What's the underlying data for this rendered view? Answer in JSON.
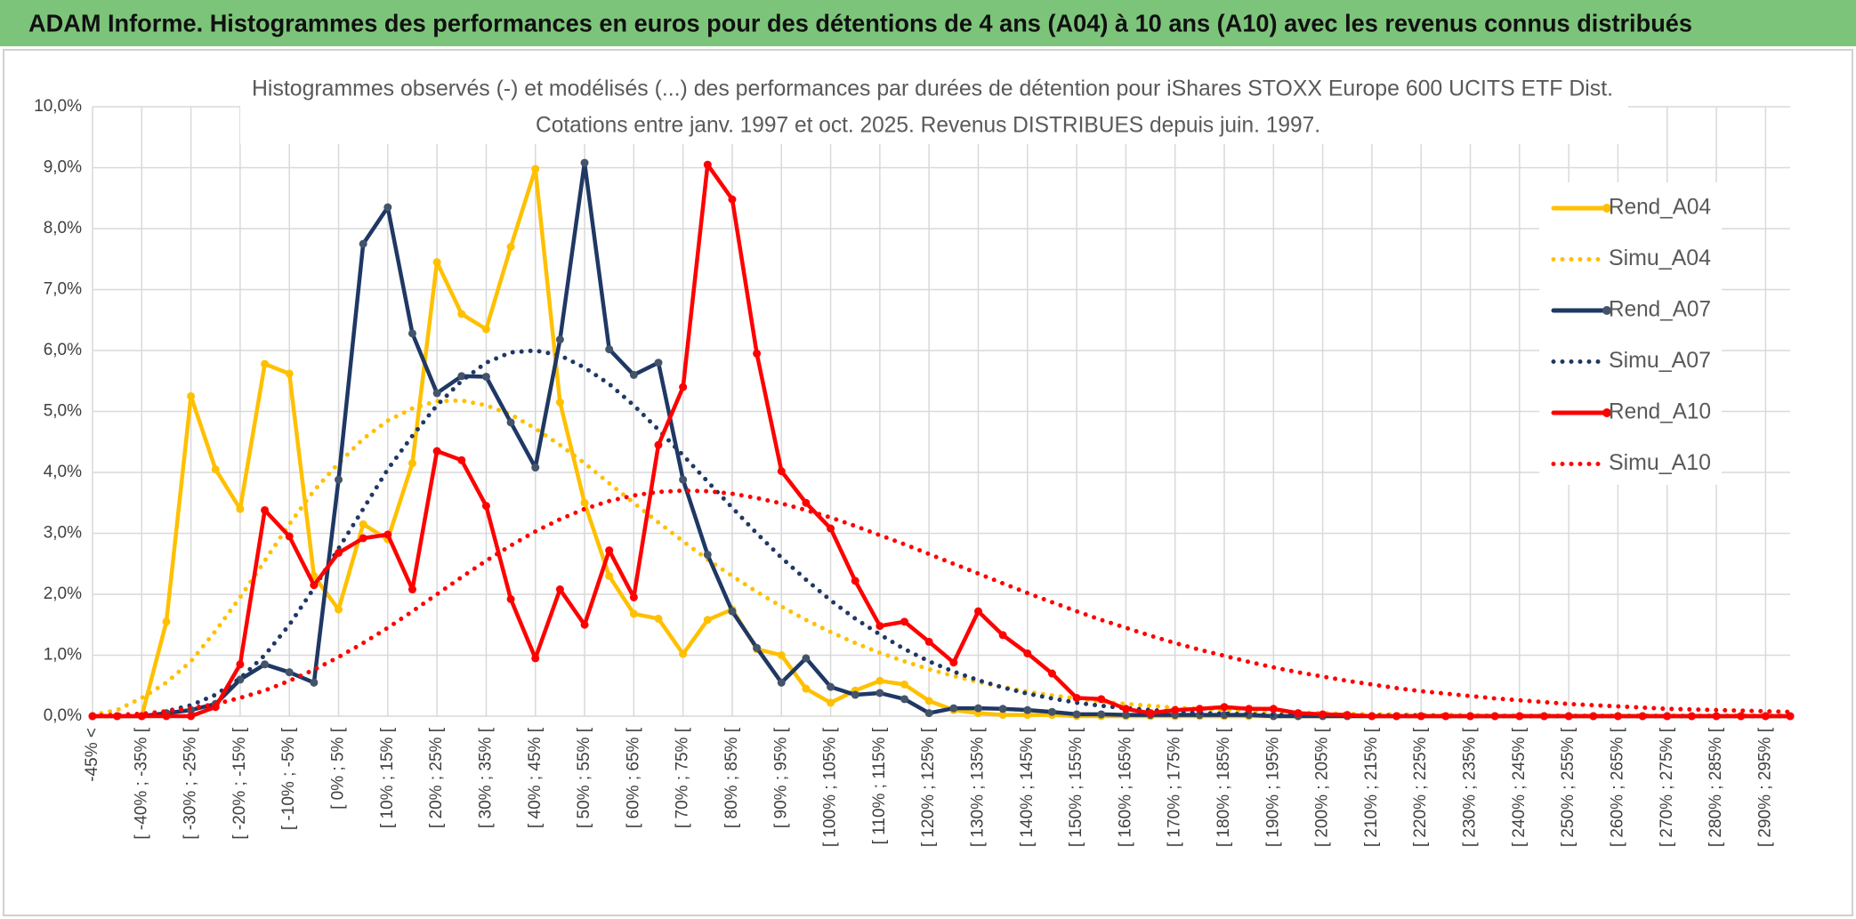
{
  "chart_data": {
    "type": "line",
    "header": "ADAM Informe. Histogrammes des performances en euros pour des détentions de 4 ans (A04) à 10 ans (A10) avec les revenus connus distribués",
    "title": "Histogrammes observés (-) et modélisés (...) des performances par durées de détention pour iShares STOXX Europe 600 UCITS ETF Dist.",
    "subtitle": "Cotations entre janv. 1997 et oct. 2025. Revenus DISTRIBUES depuis juin. 1997.",
    "categories": [
      "-45% <",
      null,
      "[ -40% ; -35% [",
      null,
      "[ -30% ; -25% [",
      null,
      "[ -20% ; -15% [",
      null,
      "[ -10% ; -5% [",
      null,
      "[ 0% ; 5% [",
      null,
      "[ 10% ; 15% [",
      null,
      "[ 20% ; 25% [",
      null,
      "[ 30% ; 35% [",
      null,
      "[ 40% ; 45% [",
      null,
      "[ 50% ; 55% [",
      null,
      "[ 60% ; 65% [",
      null,
      "[ 70% ; 75% [",
      null,
      "[ 80% ; 85% [",
      null,
      "[ 90% ; 95% [",
      null,
      "[ 100% ; 105% [",
      null,
      "[ 110% ; 115% [",
      null,
      "[ 120% ; 125% [",
      null,
      "[ 130% ; 135% [",
      null,
      "[ 140% ; 145% [",
      null,
      "[ 150% ; 155% [",
      null,
      "[ 160% ; 165% [",
      null,
      "[ 170% ; 175% [",
      null,
      "[ 180% ; 185% [",
      null,
      "[ 190% ; 195% [",
      null,
      "[ 200% ; 205% [",
      null,
      "[ 210% ; 215% [",
      null,
      "[ 220% ; 225% [",
      null,
      "[ 230% ; 235% [",
      null,
      "[ 240% ; 245% [",
      null,
      "[ 250% ; 255% [",
      null,
      "[ 260% ; 265% [",
      null,
      "[ 270% ; 275% [",
      null,
      "[ 280% ; 285% [",
      null,
      "[ 290% ; 295% [",
      null
    ],
    "series": [
      {
        "name": "Rend_A04",
        "color": "#FFC000",
        "marker_color": "#FFC000",
        "style": "solid",
        "values": [
          0,
          0,
          0,
          1.55,
          5.25,
          4.05,
          3.4,
          5.78,
          5.62,
          2.3,
          1.75,
          3.15,
          2.9,
          4.15,
          7.45,
          6.6,
          6.35,
          7.7,
          8.98,
          5.15,
          3.5,
          2.3,
          1.68,
          1.6,
          1.02,
          1.58,
          1.75,
          1.1,
          1.0,
          0.45,
          0.22,
          0.42,
          0.58,
          0.52,
          0.25,
          0.1,
          0.05,
          0.02,
          0.02,
          0.02,
          0,
          0,
          0,
          0,
          0,
          0,
          0,
          0,
          0,
          0,
          0,
          0,
          0,
          0,
          0,
          0,
          0,
          0,
          0,
          0,
          0,
          0,
          0,
          0,
          0,
          0,
          0,
          0,
          0,
          0
        ]
      },
      {
        "name": "Simu_A04",
        "color": "#FFC000",
        "style": "dotted",
        "values": [
          0.02,
          0.1,
          0.3,
          0.55,
          0.9,
          1.4,
          1.95,
          2.55,
          3.15,
          3.7,
          4.15,
          4.55,
          4.85,
          5.05,
          5.17,
          5.18,
          5.1,
          4.95,
          4.72,
          4.45,
          4.15,
          3.82,
          3.5,
          3.18,
          2.87,
          2.57,
          2.3,
          2.04,
          1.8,
          1.58,
          1.38,
          1.2,
          1.04,
          0.9,
          0.77,
          0.66,
          0.56,
          0.48,
          0.4,
          0.34,
          0.29,
          0.24,
          0.2,
          0.17,
          0.14,
          0.12,
          0.1,
          0.08,
          0.07,
          0.06,
          0.05,
          0.04,
          0.03,
          0.03,
          0.02,
          0.02,
          0.02,
          0.01,
          0.01,
          0.01,
          0.01,
          0.01,
          0.01,
          0.01,
          0.01,
          0.01,
          0.01,
          0.01,
          0.01,
          0.01
        ]
      },
      {
        "name": "Rend_A07",
        "color": "#1F3864",
        "marker_color": "#44546A",
        "style": "solid",
        "values": [
          0,
          0,
          0,
          0.05,
          0.1,
          0.2,
          0.6,
          0.85,
          0.72,
          0.55,
          3.88,
          7.75,
          8.35,
          6.28,
          5.3,
          5.58,
          5.57,
          4.82,
          4.08,
          6.18,
          9.08,
          6.02,
          5.6,
          5.8,
          3.88,
          2.65,
          1.72,
          1.12,
          0.55,
          0.95,
          0.48,
          0.35,
          0.38,
          0.28,
          0.05,
          0.13,
          0.13,
          0.12,
          0.1,
          0.07,
          0.03,
          0.03,
          0.02,
          0.02,
          0.02,
          0.02,
          0.02,
          0.02,
          0,
          0,
          0,
          0,
          0,
          0,
          0,
          0,
          0,
          0,
          0,
          0,
          0,
          0,
          0,
          0,
          0,
          0,
          0,
          0,
          0,
          0
        ]
      },
      {
        "name": "Simu_A07",
        "color": "#1F3864",
        "style": "dotted",
        "values": [
          0,
          0.01,
          0.03,
          0.08,
          0.18,
          0.35,
          0.62,
          1.0,
          1.5,
          2.1,
          2.75,
          3.4,
          4.05,
          4.6,
          5.1,
          5.5,
          5.8,
          5.97,
          6.0,
          5.92,
          5.72,
          5.45,
          5.1,
          4.7,
          4.28,
          3.85,
          3.42,
          3.0,
          2.6,
          2.24,
          1.9,
          1.6,
          1.34,
          1.1,
          0.9,
          0.73,
          0.59,
          0.47,
          0.37,
          0.29,
          0.22,
          0.17,
          0.13,
          0.1,
          0.07,
          0.05,
          0.04,
          0.03,
          0.02,
          0.02,
          0.01,
          0.01,
          0.01,
          0.01,
          0.01,
          0,
          0,
          0,
          0,
          0,
          0,
          0,
          0,
          0,
          0,
          0,
          0,
          0,
          0,
          0
        ]
      },
      {
        "name": "Rend_A10",
        "color": "#FF0000",
        "marker_color": "#FF0000",
        "style": "solid",
        "values": [
          0,
          0,
          0,
          0,
          0,
          0.15,
          0.85,
          3.38,
          2.95,
          2.15,
          2.68,
          2.92,
          2.98,
          2.08,
          4.35,
          4.2,
          3.45,
          1.92,
          0.95,
          2.08,
          1.5,
          2.72,
          1.95,
          4.45,
          5.4,
          9.05,
          8.48,
          5.95,
          4.02,
          3.5,
          3.08,
          2.22,
          1.48,
          1.55,
          1.22,
          0.88,
          1.72,
          1.33,
          1.03,
          0.7,
          0.3,
          0.28,
          0.12,
          0.05,
          0.1,
          0.12,
          0.15,
          0.12,
          0.12,
          0.05,
          0.03,
          0.02,
          0,
          0,
          0,
          0,
          0,
          0,
          0,
          0,
          0,
          0,
          0,
          0,
          0,
          0,
          0,
          0,
          0,
          0
        ]
      },
      {
        "name": "Simu_A10",
        "color": "#FF0000",
        "style": "dotted",
        "values": [
          0.01,
          0.02,
          0.04,
          0.08,
          0.13,
          0.2,
          0.3,
          0.42,
          0.58,
          0.76,
          0.97,
          1.2,
          1.45,
          1.72,
          2.0,
          2.28,
          2.55,
          2.8,
          3.03,
          3.23,
          3.4,
          3.53,
          3.62,
          3.68,
          3.7,
          3.69,
          3.65,
          3.58,
          3.49,
          3.38,
          3.26,
          3.12,
          2.97,
          2.82,
          2.66,
          2.5,
          2.34,
          2.18,
          2.02,
          1.87,
          1.72,
          1.58,
          1.45,
          1.32,
          1.2,
          1.09,
          0.99,
          0.89,
          0.8,
          0.72,
          0.65,
          0.58,
          0.52,
          0.46,
          0.41,
          0.37,
          0.33,
          0.29,
          0.26,
          0.23,
          0.2,
          0.18,
          0.16,
          0.14,
          0.12,
          0.11,
          0.1,
          0.09,
          0.08,
          0.07
        ]
      }
    ],
    "ylim": [
      0,
      10
    ],
    "yticks": [
      {
        "value": 0,
        "label": "0,0%"
      },
      {
        "value": 1,
        "label": "1,0%"
      },
      {
        "value": 2,
        "label": "2,0%"
      },
      {
        "value": 3,
        "label": "3,0%"
      },
      {
        "value": 4,
        "label": "4,0%"
      },
      {
        "value": 5,
        "label": "5,0%"
      },
      {
        "value": 6,
        "label": "6,0%"
      },
      {
        "value": 7,
        "label": "7,0%"
      },
      {
        "value": 8,
        "label": "8,0%"
      },
      {
        "value": 9,
        "label": "9,0%"
      },
      {
        "value": 10,
        "label": "10,0%"
      }
    ],
    "grid": true,
    "legend": "right"
  }
}
